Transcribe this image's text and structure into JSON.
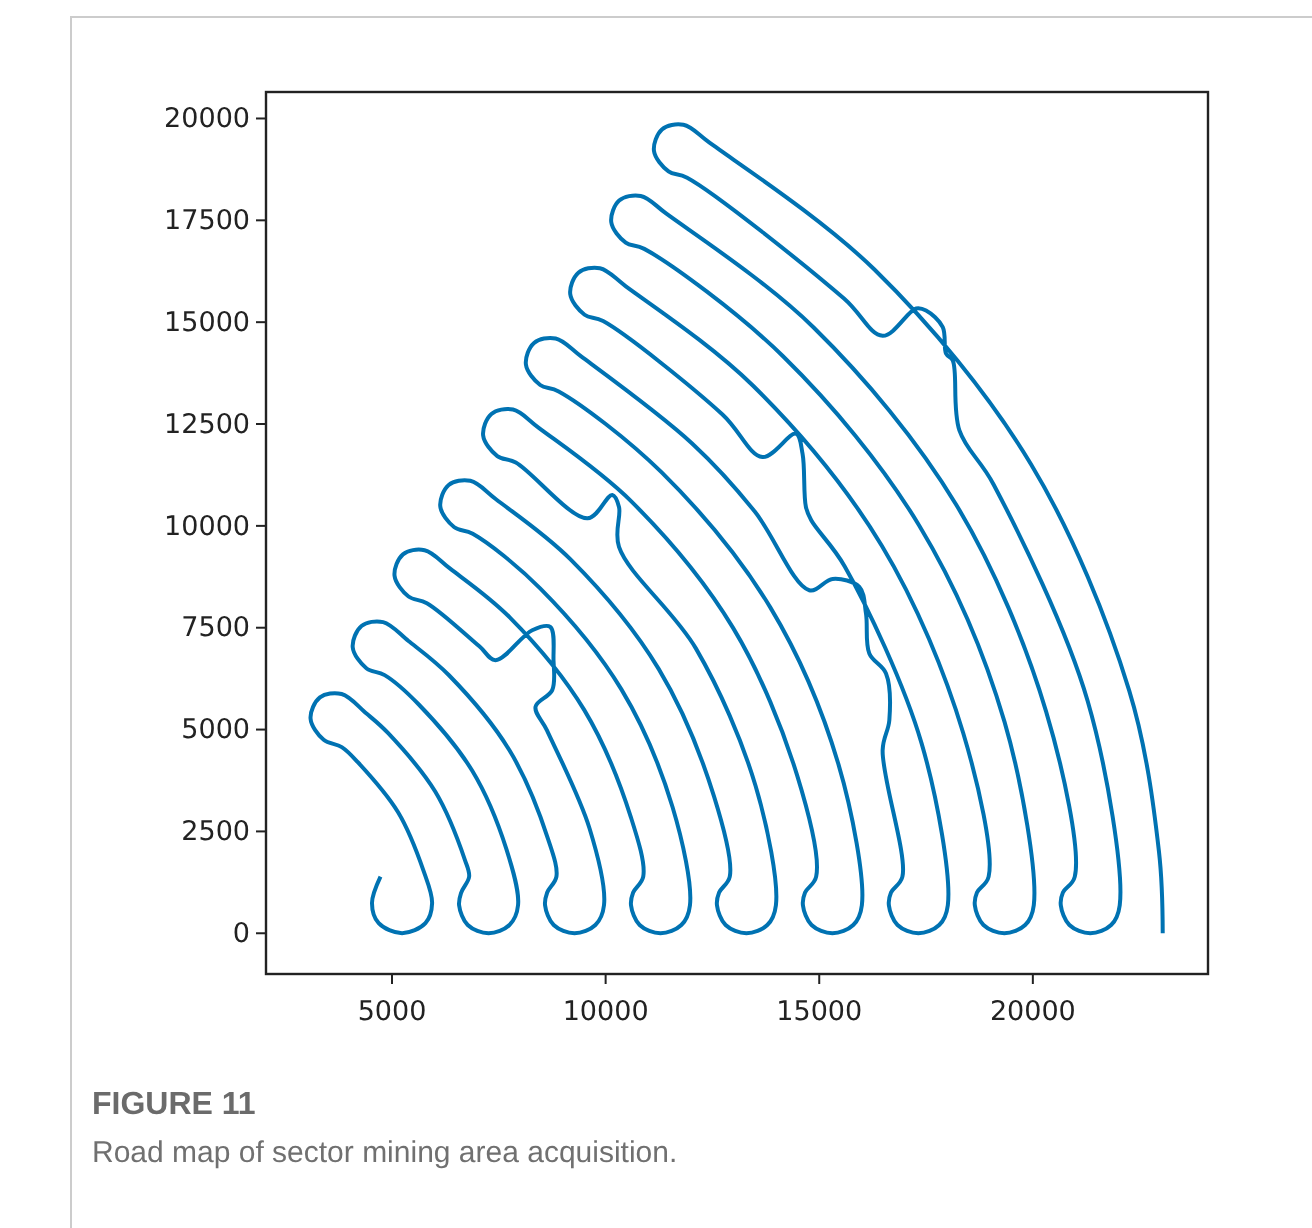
{
  "chart_data": {
    "type": "line",
    "xlim": [
      2050,
      24100
    ],
    "ylim": [
      -1000,
      20650
    ],
    "xticks": [
      5000,
      10000,
      15000,
      20000
    ],
    "yticks": [
      0,
      2500,
      5000,
      7500,
      10000,
      12500,
      15000,
      17500,
      20000
    ],
    "series": [
      {
        "color": "#0072b2",
        "x": [
          4730,
          4531,
          4688,
          5235,
          5782,
          5938,
          5736,
          5142,
          4199,
          3823,
          3400,
          3093,
          3312,
          3821,
          4402,
          4910,
          6014,
          6707,
          6805,
          6620,
          6570,
          6772,
          7260,
          7748,
          7950,
          7679,
          6885,
          5621,
          4827,
          4399,
          4080,
          4285,
          4792,
          5385,
          6333,
          7756,
          8651,
          8848,
          8632,
          8582,
          8784,
          9272,
          9760,
          9962,
          9622,
          8627,
          8359,
          8750,
          8780,
          8703,
          8281,
          7422,
          7044,
          5816,
          5386,
          5059,
          5256,
          5762,
          6361,
          7755,
          9498,
          10594,
          10880,
          10644,
          10594,
          10796,
          11284,
          11772,
          11974,
          11566,
          10369,
          8467,
          6889,
          6458,
          6130,
          6326,
          6833,
          7433,
          9178,
          11241,
          12537,
          12906,
          12656,
          12606,
          12808,
          13296,
          13784,
          13986,
          13509,
          12112,
          10313,
          10313,
          10156,
          9578,
          7897,
          7464,
          7133,
          7326,
          7831,
          8435,
          10601,
          12983,
          14481,
          14928,
          14668,
          14618,
          14820,
          15308,
          15796,
          15998,
          15452,
          13854,
          11312,
          8901,
          8468,
          8134,
          8324,
          8829,
          9434,
          12024,
          13491,
          14766,
          15313,
          15938,
          16094,
          16172,
          16563,
          16641,
          16484,
          16947,
          16680,
          16630,
          16832,
          17320,
          17808,
          18010,
          17396,
          15597,
          14813,
          14688,
          14609,
          14453,
          13672,
          12735,
          9941,
          9507,
          9172,
          9362,
          9866,
          10473,
          13446,
          16468,
          18368,
          18965,
          18692,
          18642,
          18844,
          19332,
          19820,
          20022,
          19339,
          17339,
          14158,
          10904,
          10470,
          10132,
          10317,
          10821,
          11430,
          14869,
          18210,
          20311,
          20982,
          20704,
          20654,
          20856,
          21344,
          21832,
          22034,
          21283,
          19081,
          18281,
          18125,
          17969,
          17891,
          17500,
          17266,
          16484,
          15580,
          11907,
          11472,
          11132,
          11317,
          11821,
          12431,
          16292,
          19953,
          22254,
          22952,
          23040
        ],
        "values": [
          1390,
          739,
          249,
          3,
          249,
          739,
          1537,
          2969,
          4199,
          4570,
          4749,
          5271,
          5790,
          5872,
          5393,
          4910,
          3472,
          1797,
          1390,
          1000,
          690,
          202,
          0,
          202,
          690,
          2057,
          3975,
          5621,
          6337,
          6506,
          7019,
          7543,
          7638,
          7174,
          6333,
          4478,
          2318,
          1390,
          1000,
          690,
          202,
          0,
          202,
          690,
          2578,
          4981,
          5559,
          5968,
          6700,
          7521,
          7439,
          6704,
          7044,
          8103,
          8266,
          8774,
          9301,
          9403,
          8949,
          7755,
          5484,
          2839,
          1390,
          1000,
          690,
          202,
          0,
          202,
          690,
          3099,
          5987,
          8467,
          9806,
          9967,
          10475,
          11003,
          11106,
          10653,
          9178,
          6490,
          3359,
          1390,
          1000,
          690,
          202,
          0,
          202,
          690,
          3620,
          6993,
          9483,
          10465,
          10759,
          10186,
          11555,
          11713,
          12219,
          12748,
          12855,
          12406,
          10601,
          7496,
          3880,
          1390,
          1000,
          690,
          202,
          0,
          202,
          690,
          4140,
          7999,
          11312,
          13301,
          13458,
          13961,
          14491,
          14600,
          14154,
          12024,
          10352,
          8420,
          8698,
          8502,
          7848,
          6867,
          6377,
          5232,
          4496,
          1390,
          1000,
          690,
          202,
          0,
          202,
          690,
          4661,
          9005,
          10136,
          10463,
          11772,
          12262,
          11690,
          12735,
          15026,
          15182,
          15684,
          16215,
          16325,
          15881,
          13446,
          9508,
          4921,
          1390,
          1000,
          690,
          202,
          0,
          202,
          690,
          5182,
          10011,
          14158,
          16799,
          16952,
          17453,
          17984,
          18098,
          17656,
          14869,
          10514,
          5442,
          1390,
          1000,
          690,
          202,
          0,
          202,
          690,
          5702,
          11017,
          12344,
          14061,
          14225,
          14879,
          15287,
          15336,
          14666,
          15580,
          18547,
          18699,
          19200,
          19731,
          19846,
          19406,
          16292,
          11520,
          5963,
          2008,
          0
        ]
      }
    ],
    "annotations": [
      "FIGURE 11",
      "Road map of sector mining area acquisition."
    ]
  }
}
